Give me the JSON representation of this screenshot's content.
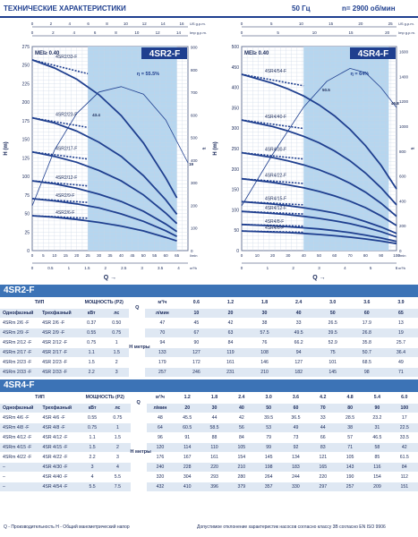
{
  "header": {
    "title": "ТЕХНИЧЕСКИЕ ХАРАКТЕРИСТИКИ",
    "frequency": "50 Гц",
    "speed": "n= 2900 об/мин"
  },
  "chart_data": [
    {
      "type": "line",
      "title": "4SR2-F",
      "mei_label": "MEI≥ 0.40",
      "efficiency_label": "η = 55.5%",
      "ylabel": "H (m)",
      "ylabel_right": "ft",
      "xlabel": "Q",
      "x_units": {
        "us": "US g.p.m.",
        "imp": "Imp g.p.m.",
        "m3h": "m³/h",
        "lmin": "l/min"
      },
      "ylim": [
        0,
        275
      ],
      "xlim": [
        0,
        70
      ],
      "y_ticks": [
        0,
        25,
        50,
        75,
        100,
        125,
        150,
        175,
        200,
        225,
        250,
        275
      ],
      "y_ticks_right": [
        0,
        100,
        200,
        300,
        400,
        500,
        600,
        700,
        800,
        900
      ],
      "x_ticks_lmin": [
        0,
        5,
        10,
        15,
        20,
        25,
        30,
        35,
        40,
        45,
        50,
        55,
        60,
        65
      ],
      "x_ticks_m3h": [
        0,
        0.5,
        1,
        1.5,
        2,
        2.5,
        3,
        3.5,
        4
      ],
      "x_ticks_us": [
        0,
        2,
        4,
        6,
        8,
        10,
        12,
        14,
        16
      ],
      "x_ticks_imp": [
        0,
        2,
        4,
        6,
        8,
        10,
        12,
        14
      ],
      "band": [
        25,
        65
      ],
      "efficiency_x": [
        0,
        10,
        20,
        30,
        40,
        50,
        60,
        70
      ],
      "efficiency_y": [
        0,
        26,
        43,
        53,
        55.5,
        52,
        40,
        20
      ],
      "efficiency_point_labels": [
        "43.4",
        "31",
        "19"
      ],
      "x": [
        0,
        10,
        20,
        30,
        40,
        50,
        60,
        65
      ],
      "series": [
        {
          "name": "4SR2/33-F",
          "values": [
            257,
            246,
            231,
            210,
            182,
            145,
            98,
            71
          ]
        },
        {
          "name": "4SR2/23-F",
          "values": [
            179,
            172,
            161,
            146,
            127,
            101,
            68.5,
            49
          ]
        },
        {
          "name": "4SR2/17-F",
          "values": [
            133,
            127,
            119,
            108,
            94,
            75,
            50.7,
            36.4
          ]
        },
        {
          "name": "4SR2/12-F",
          "values": [
            94,
            90,
            84,
            76,
            66.2,
            52.9,
            35.8,
            25.7
          ]
        },
        {
          "name": "4SR2/9-F",
          "values": [
            70,
            67,
            63,
            57.5,
            49.5,
            39.5,
            26.8,
            19
          ]
        },
        {
          "name": "4SR2/6-F",
          "values": [
            47,
            45,
            42,
            38,
            33,
            26.5,
            17.9,
            13
          ]
        }
      ]
    },
    {
      "type": "line",
      "title": "4SR4-F",
      "mei_label": "MEI≥ 0.40",
      "efficiency_label": "η = 64%",
      "ylabel": "H (m)",
      "ylabel_right": "ft",
      "xlabel": "Q",
      "x_units": {
        "us": "US g.p.m.",
        "imp": "Imp g.p.m.",
        "m3h": "m³/h",
        "lmin": "l/min"
      },
      "ylim": [
        0,
        500
      ],
      "xlim": [
        0,
        100
      ],
      "y_ticks": [
        0,
        50,
        100,
        150,
        200,
        250,
        300,
        350,
        400,
        450,
        500
      ],
      "y_ticks_right": [
        0,
        200,
        400,
        600,
        800,
        1000,
        1200,
        1400,
        1600
      ],
      "x_ticks_lmin": [
        0,
        10,
        20,
        30,
        40,
        50,
        60,
        70,
        80,
        90,
        100
      ],
      "x_ticks_m3h": [
        0,
        1,
        2,
        3,
        4,
        5,
        6
      ],
      "x_ticks_us": [
        0,
        5,
        10,
        15,
        20,
        25
      ],
      "x_ticks_imp": [
        0,
        5,
        10,
        15,
        20
      ],
      "band": [
        40,
        95
      ],
      "efficiency_x": [
        0,
        20,
        40,
        55,
        70,
        80,
        90,
        100
      ],
      "efficiency_y": [
        0,
        24,
        46,
        58,
        64,
        62,
        55,
        45.8
      ],
      "efficiency_point_labels": [
        "50.5",
        "45.8"
      ],
      "x": [
        0,
        20,
        30,
        40,
        50,
        60,
        70,
        80,
        90,
        100
      ],
      "series": [
        {
          "name": "4SR4/54-F",
          "values": [
            432,
            410,
            396,
            379,
            357,
            330,
            297,
            257,
            209,
            151
          ]
        },
        {
          "name": "4SR4/40-F",
          "values": [
            320,
            304,
            293,
            280,
            264,
            244,
            220,
            190,
            154,
            112
          ]
        },
        {
          "name": "4SR4/30-F",
          "values": [
            240,
            228,
            220,
            210,
            198,
            183,
            165,
            143,
            116,
            84
          ]
        },
        {
          "name": "4SR4/22-F",
          "values": [
            176,
            167,
            161,
            154,
            145,
            134,
            121,
            105,
            85,
            61.5
          ]
        },
        {
          "name": "4SR4/15-F",
          "values": [
            120,
            114,
            110,
            105,
            99,
            92,
            83,
            71,
            58,
            42
          ]
        },
        {
          "name": "4SR4/12-F",
          "values": [
            96,
            91,
            88,
            84,
            79,
            73,
            66,
            57,
            46.5,
            33.5
          ]
        },
        {
          "name": "4SR4/8-F",
          "values": [
            64,
            60.5,
            58.5,
            56,
            53,
            49,
            44,
            38,
            31,
            22.5
          ]
        },
        {
          "name": "4SR4/6-F",
          "values": [
            48,
            45.5,
            44,
            42,
            39.5,
            36.5,
            33,
            28.5,
            23.2,
            17
          ]
        }
      ]
    }
  ],
  "table1": {
    "title": "4SR2-F",
    "type_label": "ТИП",
    "power_label": "МОЩНОСТЬ (P2)",
    "mono_label": "Однофазный",
    "tri_label": "Трехфазный",
    "kw_label": "кВт",
    "hp_label": "лс",
    "q_label": "Q",
    "m3h_label": "м³/ч",
    "lmin_label": "л/мин",
    "h_label": "H  метры",
    "m3h": [
      "0",
      "0.6",
      "1.2",
      "1.8",
      "2.4",
      "3.0",
      "3.6",
      "3.9"
    ],
    "lmin": [
      "0",
      "10",
      "20",
      "30",
      "40",
      "50",
      "60",
      "65"
    ],
    "rows": [
      {
        "mono": "4SRm 2/6   -F",
        "tri": "4SR 2/6   -F",
        "kw": "0.37",
        "hp": "0.50",
        "h": [
          "47",
          "45",
          "42",
          "38",
          "33",
          "26.5",
          "17.9",
          "13"
        ]
      },
      {
        "mono": "4SRm 2/9   -F",
        "tri": "4SR 2/9   -F",
        "kw": "0.55",
        "hp": "0.75",
        "h": [
          "70",
          "67",
          "63",
          "57.5",
          "49.5",
          "39.5",
          "26.8",
          "19"
        ]
      },
      {
        "mono": "4SRm 2/12 -F",
        "tri": "4SR 2/12 -F",
        "kw": "0.75",
        "hp": "1",
        "h": [
          "94",
          "90",
          "84",
          "76",
          "66.2",
          "52.9",
          "35.8",
          "25.7"
        ]
      },
      {
        "mono": "4SRm 2/17 -F",
        "tri": "4SR 2/17 -F",
        "kw": "1.1",
        "hp": "1.5",
        "h": [
          "133",
          "127",
          "119",
          "108",
          "94",
          "75",
          "50.7",
          "36.4"
        ]
      },
      {
        "mono": "4SRm 2/23 -F",
        "tri": "4SR 2/23 -F",
        "kw": "1.5",
        "hp": "2",
        "h": [
          "179",
          "172",
          "161",
          "146",
          "127",
          "101",
          "68.5",
          "49"
        ]
      },
      {
        "mono": "4SRm 2/33 -F",
        "tri": "4SR 2/33 -F",
        "kw": "2.2",
        "hp": "3",
        "h": [
          "257",
          "246",
          "231",
          "210",
          "182",
          "145",
          "98",
          "71"
        ]
      }
    ]
  },
  "table2": {
    "title": "4SR4-F",
    "type_label": "ТИП",
    "power_label": "МОЩНОСТЬ (P2)",
    "mono_label": "Однофазный",
    "tri_label": "Трехфазный",
    "kw_label": "кВт",
    "hp_label": "лс",
    "q_label": "Q",
    "m3h_label": "м³/ч",
    "lmin_label": "л/мин",
    "h_label": "H  метры",
    "m3h": [
      "0",
      "1.2",
      "1.8",
      "2.4",
      "3.0",
      "3.6",
      "4.2",
      "4.8",
      "5.4",
      "6.0"
    ],
    "lmin": [
      "0",
      "20",
      "30",
      "40",
      "50",
      "60",
      "70",
      "80",
      "90",
      "100"
    ],
    "rows": [
      {
        "mono": "4SRm 4/6   -F",
        "tri": "4SR 4/6   -F",
        "kw": "0.55",
        "hp": "0.75",
        "h": [
          "48",
          "45.5",
          "44",
          "42",
          "39.5",
          "36.5",
          "33",
          "28.5",
          "23.2",
          "17"
        ]
      },
      {
        "mono": "4SRm 4/8   -F",
        "tri": "4SR 4/8   -F",
        "kw": "0.75",
        "hp": "1",
        "h": [
          "64",
          "60.5",
          "58.5",
          "56",
          "53",
          "49",
          "44",
          "38",
          "31",
          "22.5"
        ]
      },
      {
        "mono": "4SRm 4/12 -F",
        "tri": "4SR 4/12 -F",
        "kw": "1.1",
        "hp": "1.5",
        "h": [
          "96",
          "91",
          "88",
          "84",
          "79",
          "73",
          "66",
          "57",
          "46.5",
          "33.5"
        ]
      },
      {
        "mono": "4SRm 4/15 -F",
        "tri": "4SR 4/15 -F",
        "kw": "1.5",
        "hp": "2",
        "h": [
          "120",
          "114",
          "110",
          "105",
          "99",
          "92",
          "83",
          "71",
          "58",
          "42"
        ]
      },
      {
        "mono": "4SRm 4/22 -F",
        "tri": "4SR 4/22 -F",
        "kw": "2.2",
        "hp": "3",
        "h": [
          "176",
          "167",
          "161",
          "154",
          "145",
          "134",
          "121",
          "105",
          "85",
          "61.5"
        ]
      },
      {
        "mono": "–",
        "tri": "4SR 4/30 -F",
        "kw": "3",
        "hp": "4",
        "h": [
          "240",
          "228",
          "220",
          "210",
          "198",
          "183",
          "165",
          "143",
          "116",
          "84"
        ]
      },
      {
        "mono": "–",
        "tri": "4SR 4/40 -F",
        "kw": "4",
        "hp": "5.5",
        "h": [
          "320",
          "304",
          "293",
          "280",
          "264",
          "244",
          "220",
          "190",
          "154",
          "112"
        ]
      },
      {
        "mono": "–",
        "tri": "4SR 4/54 -F",
        "kw": "5.5",
        "hp": "7.5",
        "h": [
          "432",
          "410",
          "396",
          "379",
          "357",
          "330",
          "297",
          "257",
          "209",
          "151"
        ]
      }
    ]
  },
  "footer": {
    "left": "Q - Производительность  H - Общий манометрический напор",
    "right": "Допустимое отклонение характеристик насосов согласно классу 3B согласно EN ISO 9906"
  }
}
